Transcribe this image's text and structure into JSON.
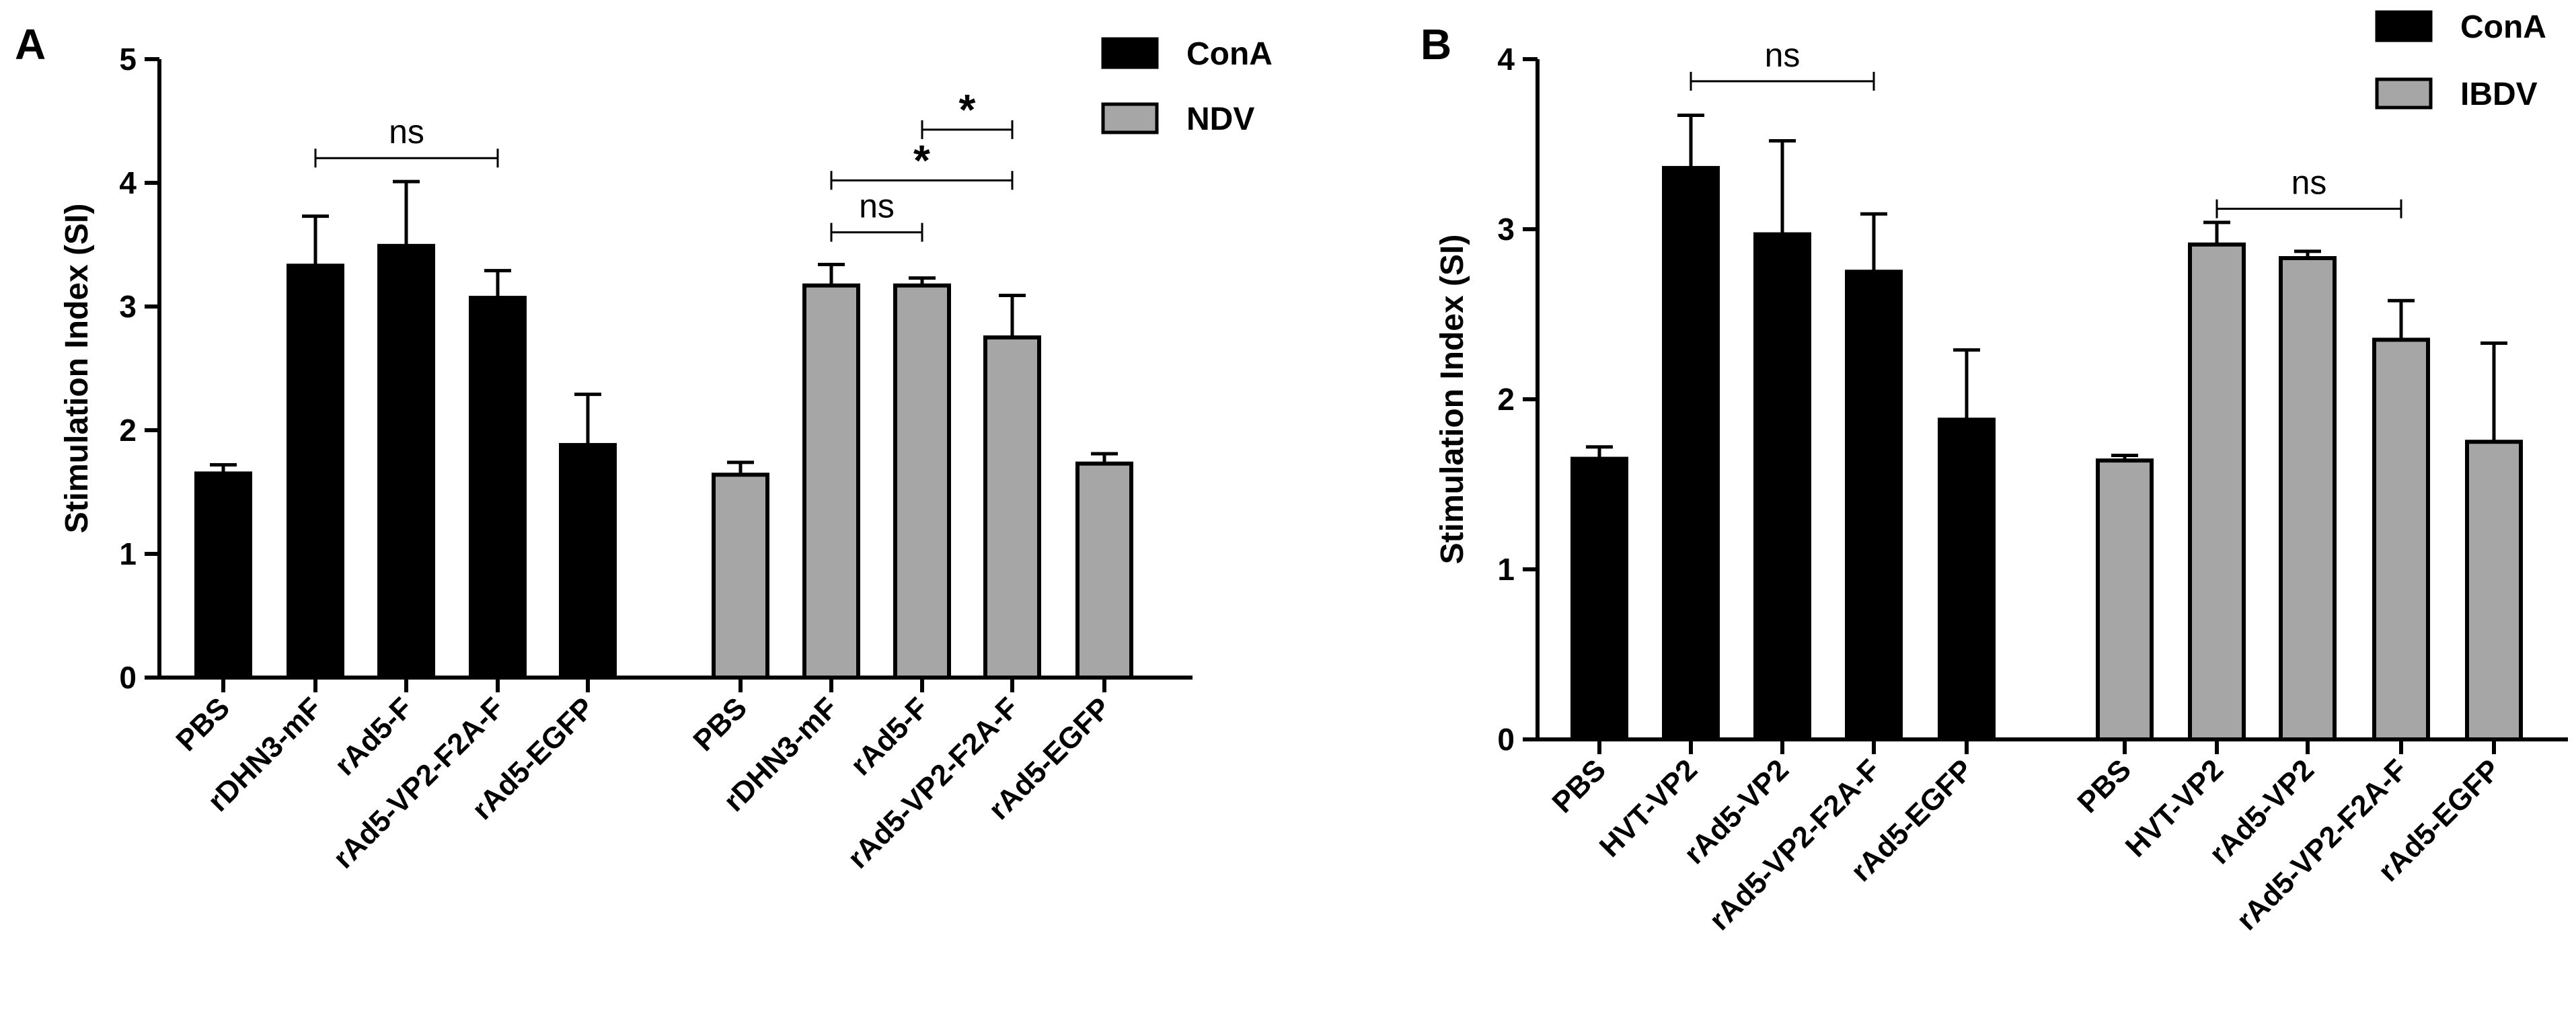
{
  "chart_data": [
    {
      "panel": "A",
      "type": "bar",
      "ylabel": "Stimulation Index (SI)",
      "ylim": [
        0,
        5
      ],
      "yticks": [
        0,
        1,
        2,
        3,
        4,
        5
      ],
      "groups": [
        {
          "name": "ConA",
          "color": "#000000",
          "categories": [
            "PBS",
            "rDHN3-mF",
            "rAd5-F",
            "rAd5-VP2-F2A-F",
            "rAd5-EGFP"
          ],
          "values": [
            1.65,
            3.33,
            3.49,
            3.07,
            1.88
          ],
          "errors": [
            0.07,
            0.4,
            0.52,
            0.22,
            0.41
          ]
        },
        {
          "name": "NDV",
          "color": "#a6a6a6",
          "categories": [
            "PBS",
            "rDHN3-mF",
            "rAd5-F",
            "rAd5-VP2-F2A-F",
            "rAd5-EGFP"
          ],
          "values": [
            1.64,
            3.17,
            3.17,
            2.75,
            1.73
          ],
          "errors": [
            0.1,
            0.17,
            0.06,
            0.34,
            0.08
          ]
        }
      ],
      "annotations": [
        {
          "group": 0,
          "from": 1,
          "to": 3,
          "text": "ns",
          "y": 4.2
        },
        {
          "group": 1,
          "from": 1,
          "to": 2,
          "text": "ns",
          "y": 3.6
        },
        {
          "group": 1,
          "from": 1,
          "to": 3,
          "text": "*",
          "y": 4.02
        },
        {
          "group": 1,
          "from": 2,
          "to": 3,
          "text": "*",
          "y": 4.43
        }
      ],
      "legend": [
        "ConA",
        "NDV"
      ]
    },
    {
      "panel": "B",
      "type": "bar",
      "ylabel": "Stimulation Index (SI)",
      "ylim": [
        0,
        4
      ],
      "yticks": [
        0,
        1,
        2,
        3,
        4
      ],
      "groups": [
        {
          "name": "ConA",
          "color": "#000000",
          "categories": [
            "PBS",
            "HVT-VP2",
            "rAd5-VP2",
            "rAd5-VP2-F2A-F",
            "rAd5-EGFP"
          ],
          "values": [
            1.65,
            3.36,
            2.97,
            2.75,
            1.88
          ],
          "errors": [
            0.07,
            0.31,
            0.55,
            0.34,
            0.41
          ]
        },
        {
          "name": "IBDV",
          "color": "#a6a6a6",
          "categories": [
            "PBS",
            "HVT-VP2",
            "rAd5-VP2",
            "rAd5-VP2-F2A-F",
            "rAd5-EGFP"
          ],
          "values": [
            1.64,
            2.91,
            2.83,
            2.35,
            1.75
          ],
          "errors": [
            0.03,
            0.13,
            0.04,
            0.23,
            0.58
          ]
        }
      ],
      "annotations": [
        {
          "group": 0,
          "from": 1,
          "to": 3,
          "text": "ns",
          "y": 3.87
        },
        {
          "group": 1,
          "from": 1,
          "to": 3,
          "text": "ns",
          "y": 3.12
        }
      ],
      "legend": [
        "ConA",
        "IBDV"
      ]
    }
  ]
}
